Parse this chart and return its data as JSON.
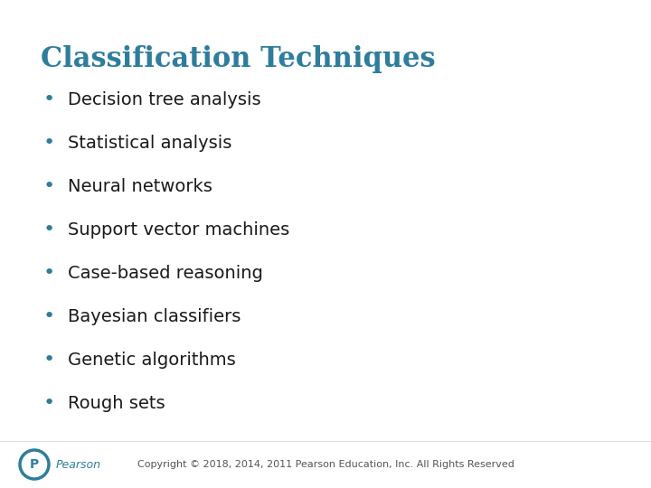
{
  "title": "Classification Techniques",
  "title_color": "#2E7D9C",
  "title_fontsize": 22,
  "bullet_items": [
    "Decision tree analysis",
    "Statistical analysis",
    "Neural networks",
    "Support vector machines",
    "Case-based reasoning",
    "Bayesian classifiers",
    "Genetic algorithms",
    "Rough sets"
  ],
  "bullet_color": "#1a1a1a",
  "bullet_fontsize": 14,
  "bullet_dot_color": "#2E7D9C",
  "background_color": "#FFFFFF",
  "footer_text": "Copyright © 2018, 2014, 2011 Pearson Education, Inc. All Rights Reserved",
  "footer_color": "#555555",
  "footer_fontsize": 8,
  "pearson_text": "Pearson",
  "pearson_color": "#2E7D9C",
  "pearson_fontsize": 9
}
